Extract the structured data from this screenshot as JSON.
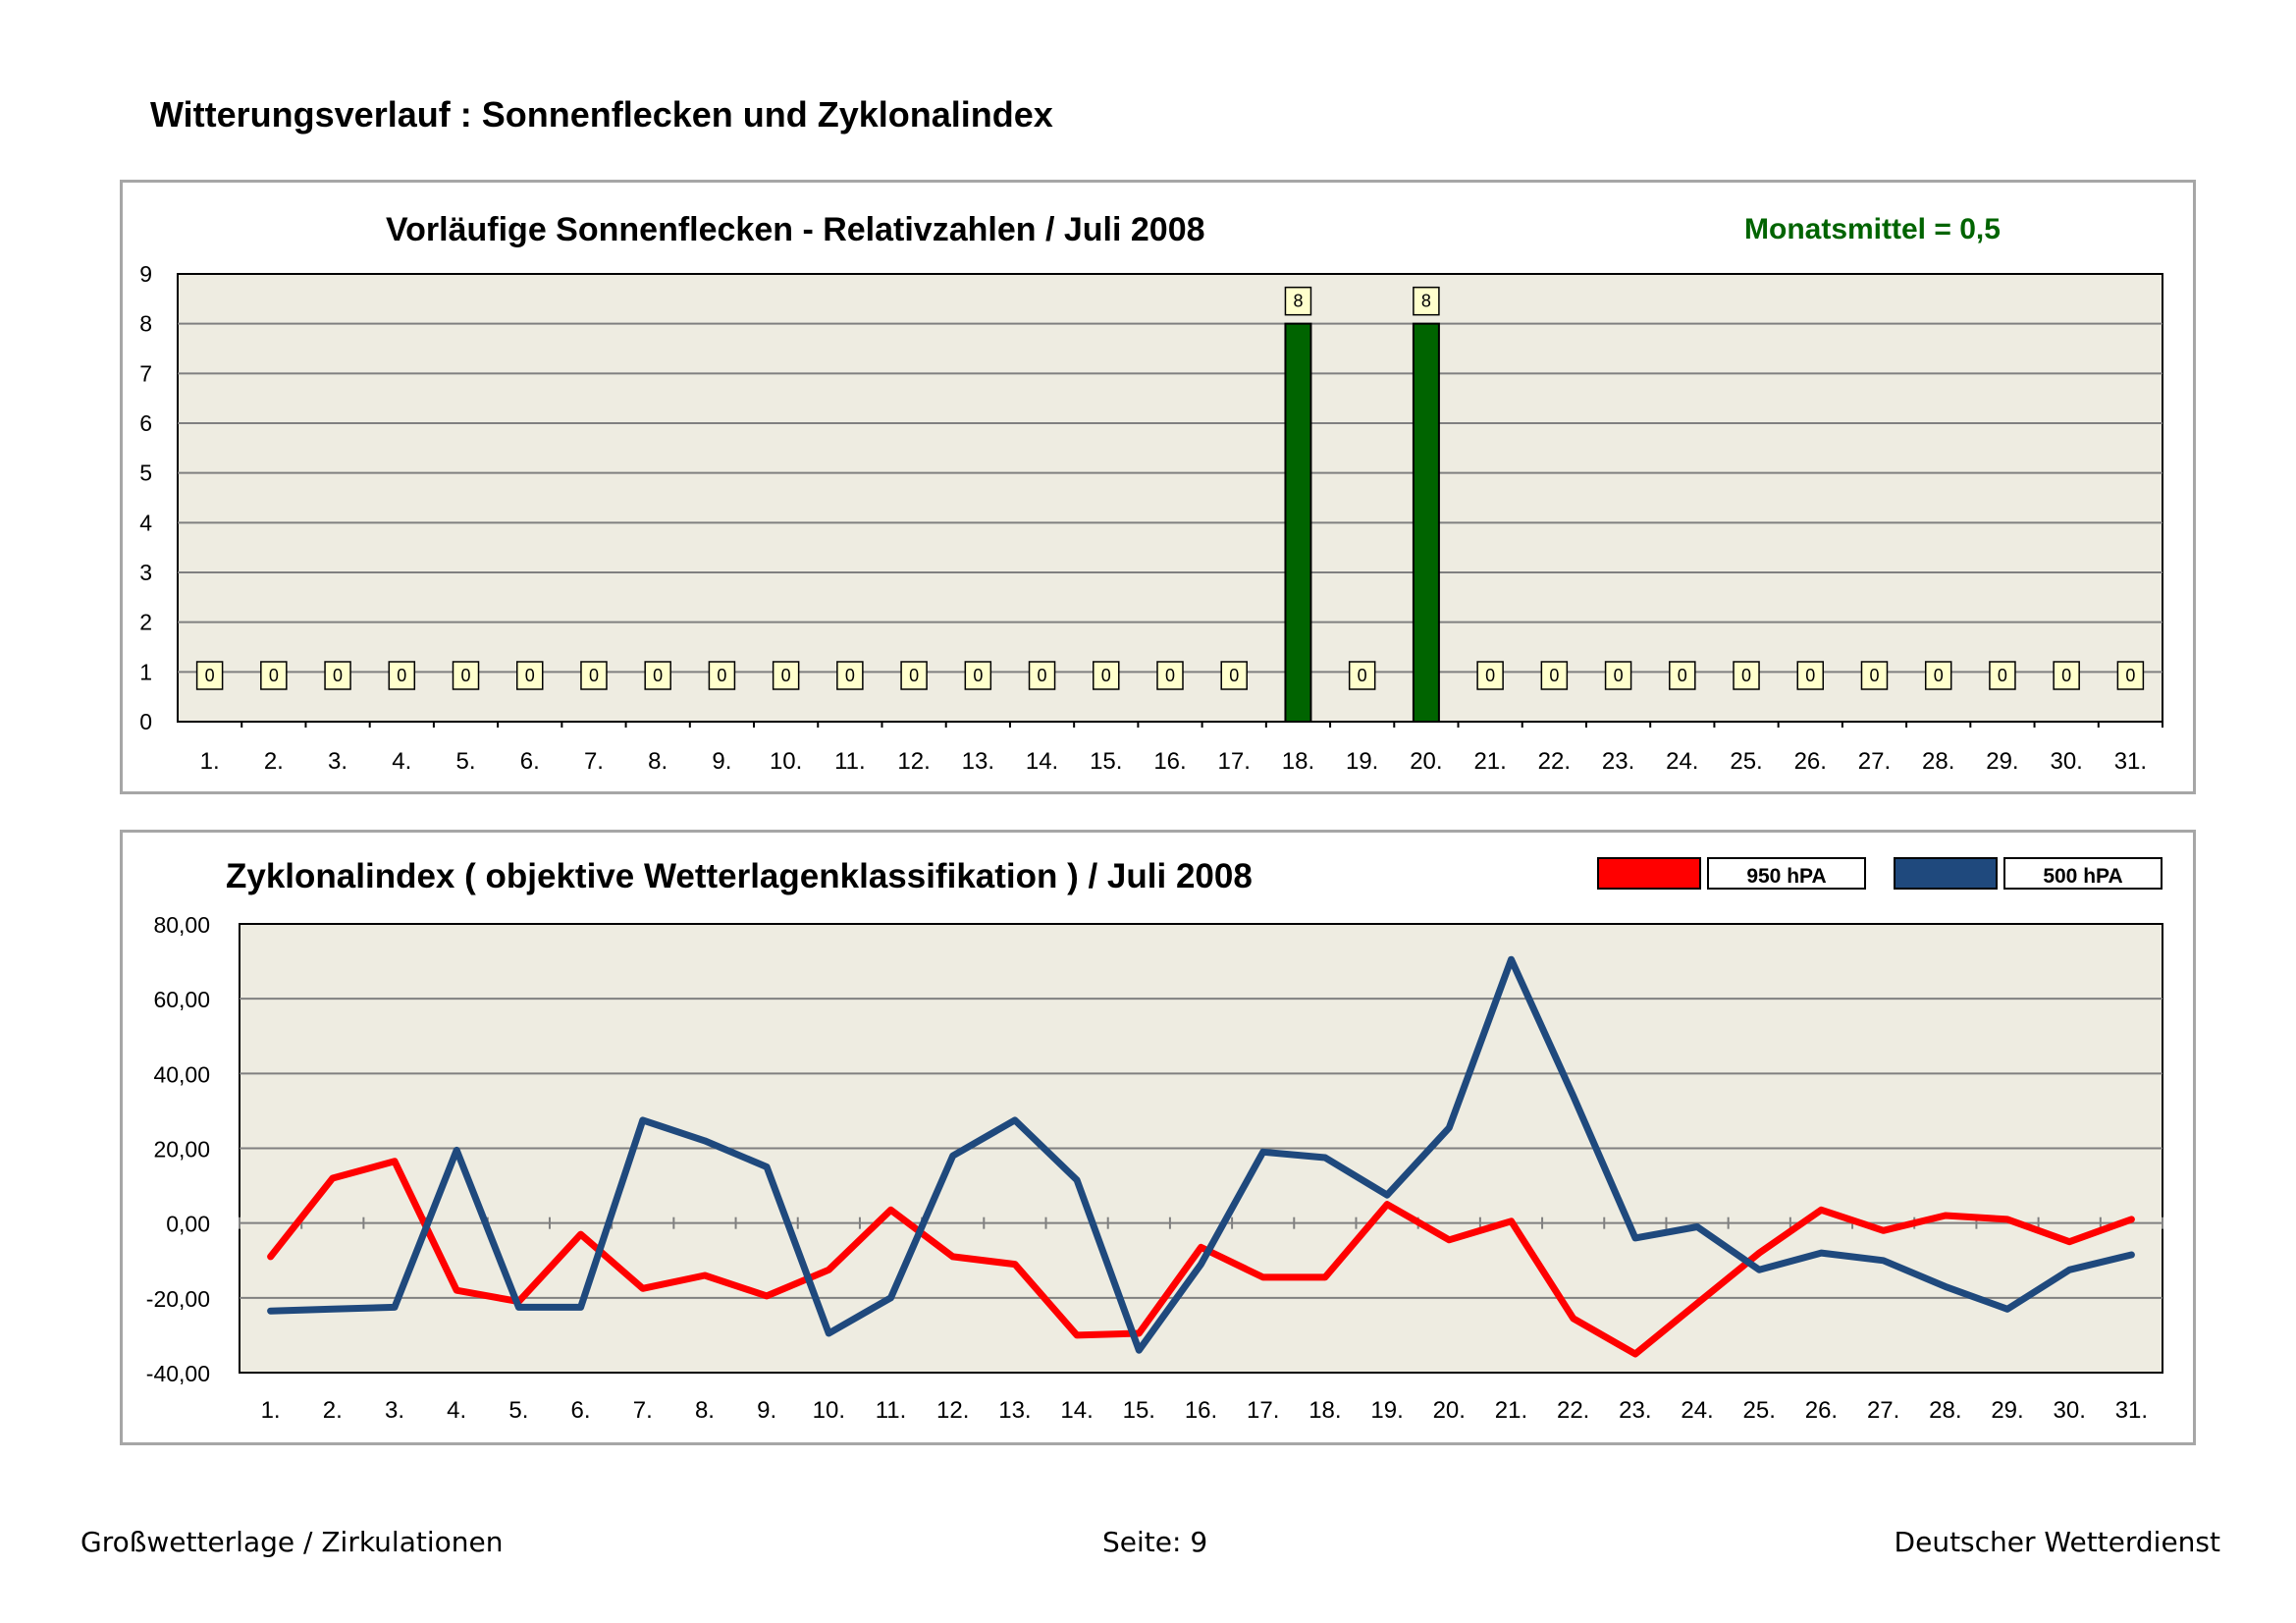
{
  "page": {
    "title": "Witterungsverlauf : Sonnenflecken und Zyklonalindex",
    "footer_left": "Großwetterlage / Zirkulationen",
    "footer_center": "Seite: 9",
    "footer_right": "Deutscher Wetterdienst"
  },
  "chart_data": [
    {
      "type": "bar",
      "title": "Vorläufige Sonnenflecken - Relativzahlen   /   Juli 2008",
      "annotation": "Monatsmittel = 0,5",
      "categories": [
        "1.",
        "2.",
        "3.",
        "4.",
        "5.",
        "6.",
        "7.",
        "8.",
        "9.",
        "10.",
        "11.",
        "12.",
        "13.",
        "14.",
        "15.",
        "16.",
        "17.",
        "18.",
        "19.",
        "20.",
        "21.",
        "22.",
        "23.",
        "24.",
        "25.",
        "26.",
        "27.",
        "28.",
        "29.",
        "30.",
        "31."
      ],
      "values": [
        0,
        0,
        0,
        0,
        0,
        0,
        0,
        0,
        0,
        0,
        0,
        0,
        0,
        0,
        0,
        0,
        0,
        8,
        0,
        8,
        0,
        0,
        0,
        0,
        0,
        0,
        0,
        0,
        0,
        0,
        0
      ],
      "ylim": [
        0,
        9
      ],
      "yticks": [
        "0",
        "1",
        "2",
        "3",
        "4",
        "5",
        "6",
        "7",
        "8",
        "9"
      ],
      "xlabel": "",
      "ylabel": "",
      "bar_color": "#006400",
      "grid": true
    },
    {
      "type": "line",
      "title": "Zyklonalindex  ( objektive Wetterlagenklassifikation )  /  Juli 2008",
      "categories": [
        "1.",
        "2.",
        "3.",
        "4.",
        "5.",
        "6.",
        "7.",
        "8.",
        "9.",
        "10.",
        "11.",
        "12.",
        "13.",
        "14.",
        "15.",
        "16.",
        "17.",
        "18.",
        "19.",
        "20.",
        "21.",
        "22.",
        "23.",
        "24.",
        "25.",
        "26.",
        "27.",
        "28.",
        "29.",
        "30.",
        "31."
      ],
      "series": [
        {
          "name": "950 hPA",
          "color": "#ff0000",
          "values": [
            -9,
            12,
            16.5,
            -18,
            -21,
            -3,
            -17.5,
            -14,
            -19.5,
            -12.5,
            3.5,
            -9,
            -11,
            -30,
            -29.5,
            -6.5,
            -14.5,
            -14.5,
            5,
            -4.5,
            0.5,
            -25.5,
            -35,
            -21.5,
            -8,
            3.5,
            -2,
            2,
            1,
            -5,
            1
          ]
        },
        {
          "name": "500 hPA",
          "color": "#1f497d",
          "values": [
            -23.5,
            -23,
            -22.5,
            19.5,
            -22.5,
            -22.5,
            27.5,
            22,
            15,
            -29.5,
            -20,
            18,
            27.5,
            11.5,
            -34,
            -11,
            19,
            17.5,
            7.5,
            25.5,
            70.5,
            34,
            -4,
            -1,
            -12.5,
            -8,
            -10,
            -17,
            -23,
            -12.5,
            -8.5
          ]
        }
      ],
      "ylim": [
        -40,
        80
      ],
      "yticks": [
        "80,00",
        "60,00",
        "40,00",
        "20,00",
        "0,00",
        "-20,00",
        "-40,00"
      ],
      "xlabel": "",
      "ylabel": "",
      "legend": "top-right",
      "grid": true
    }
  ]
}
